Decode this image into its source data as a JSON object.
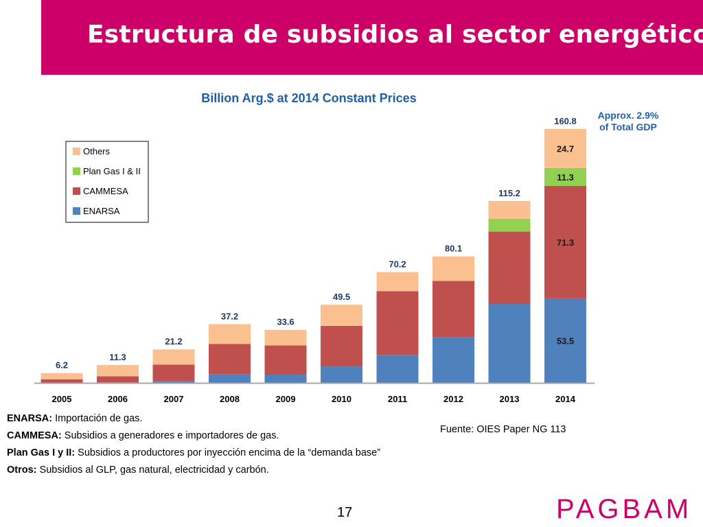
{
  "slide": {
    "title": "Estructura de subsidios al sector energético",
    "page_number": "17",
    "brand": "PAGBAM"
  },
  "notes": [
    {
      "label": "ENARSA:",
      "text": " Importación de gas."
    },
    {
      "label": "CAMMESA:",
      "text": " Subsidios a generadores e importadores de gas."
    },
    {
      "label": "Plan Gas I y II:",
      "text": " Subsidios a productores por inyección encima de la “demanda base”"
    },
    {
      "label": "Otros:",
      "text": " Subsidios al GLP, gas natural, electricidad y carbón."
    }
  ],
  "source": "Fuente: OIES Paper NG 113",
  "chart_data": {
    "type": "bar",
    "stacked": true,
    "title": "Billion Arg.$ at 2014 Constant Prices",
    "annotation": "Approx. 2.9% of Total GDP",
    "annotation_lines": [
      "Approx. 2.9%",
      "of Total GDP"
    ],
    "categories": [
      "2005",
      "2006",
      "2007",
      "2008",
      "2009",
      "2010",
      "2011",
      "2012",
      "2013",
      "2014"
    ],
    "totals": [
      6.2,
      11.3,
      21.2,
      37.2,
      33.6,
      49.5,
      70.2,
      80.1,
      115.2,
      160.8
    ],
    "total_labels": [
      "6.2",
      "11.3",
      "21.2",
      "37.2",
      "33.6",
      "49.5",
      "70.2",
      "80.1",
      "115.2",
      "160.8"
    ],
    "series": [
      {
        "name": "ENARSA",
        "color": "#4f81bd",
        "values": [
          0,
          0.3,
          1.0,
          5.6,
          5.2,
          10.4,
          17.7,
          29.0,
          50.2,
          53.5
        ],
        "labels": [
          "",
          "",
          "",
          "",
          "",
          "",
          "",
          "",
          "",
          "53.5"
        ]
      },
      {
        "name": "CAMMESA",
        "color": "#c0504d",
        "values": [
          2.3,
          3.9,
          10.6,
          19.1,
          18.5,
          25.7,
          40.4,
          35.6,
          45.6,
          71.3
        ],
        "labels": [
          "",
          "",
          "",
          "",
          "",
          "",
          "",
          "",
          "",
          "71.3"
        ]
      },
      {
        "name": "Plan Gas I & II",
        "color": "#92d050",
        "values": [
          0,
          0,
          0,
          0,
          0,
          0,
          0,
          0,
          8.1,
          11.3
        ],
        "labels": [
          "",
          "",
          "",
          "",
          "",
          "",
          "",
          "",
          "",
          "11.3"
        ]
      },
      {
        "name": "Others",
        "color": "#fac090",
        "values": [
          3.9,
          7.1,
          9.6,
          12.5,
          9.9,
          13.4,
          12.1,
          15.5,
          11.3,
          24.7
        ],
        "labels": [
          "",
          "",
          "",
          "",
          "",
          "",
          "",
          "",
          "",
          "24.7"
        ]
      }
    ],
    "legend_order": [
      "Others",
      "Plan Gas I & II",
      "CAMMESA",
      "ENARSA"
    ],
    "legend_labels": [
      "Others",
      "Plan Gas I & II",
      "CAMMESA",
      "ENARSA"
    ],
    "legend_placement": "top-left",
    "ylim": [
      0,
      165
    ],
    "grid": false,
    "colors": {
      "title": "#1f5fa8",
      "total_label": "#1f3864",
      "annotation": "#1f5fa8",
      "axis": "#a6a6a6"
    }
  }
}
